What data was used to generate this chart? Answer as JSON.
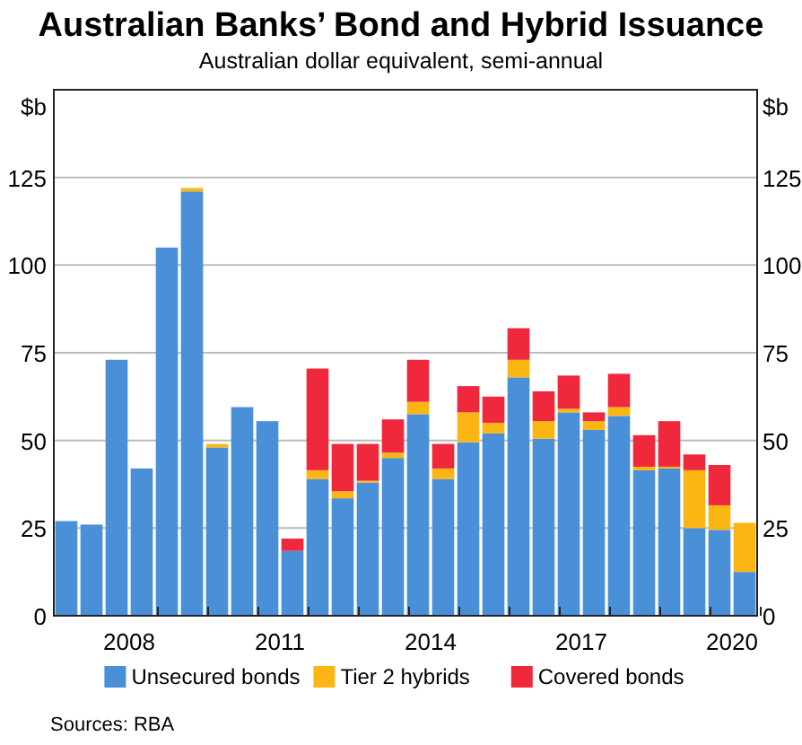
{
  "chart_data": {
    "type": "bar",
    "stacked": true,
    "title": "Australian Banks’ Bond and Hybrid Issuance",
    "subtitle": "Australian dollar equivalent, semi-annual",
    "ylabel": "$b",
    "y2label": "$b",
    "categories": [
      null,
      null,
      "2008",
      null,
      null,
      null,
      null,
      null,
      "2011",
      null,
      null,
      null,
      null,
      null,
      "2014",
      null,
      null,
      null,
      null,
      null,
      "2017",
      null,
      null,
      null,
      null,
      null,
      "2020",
      null
    ],
    "series": [
      {
        "name": "Unsecured bonds",
        "color": "#4a90d9",
        "values": [
          27,
          26,
          73,
          42,
          105,
          121,
          48,
          59.5,
          55.5,
          18.5,
          39,
          33.5,
          38,
          45,
          57.5,
          39,
          49.5,
          52,
          68,
          50.5,
          58,
          53,
          57,
          41.5,
          42,
          25,
          24.5,
          12.5
        ]
      },
      {
        "name": "Tier 2 hybrids",
        "color": "#fbb614",
        "values": [
          0,
          0,
          0,
          0,
          0,
          1,
          1,
          0,
          0,
          0,
          2.5,
          2,
          0.5,
          1.5,
          3.5,
          3,
          8.5,
          3,
          5,
          5,
          1,
          2.5,
          2.5,
          1,
          0.5,
          16.5,
          7,
          14
        ]
      },
      {
        "name": "Covered bonds",
        "color": "#f0283c",
        "values": [
          0,
          0,
          0,
          0,
          0,
          0,
          0,
          0,
          0,
          3.5,
          29,
          13.5,
          10.5,
          9.5,
          12,
          7,
          7.5,
          7.5,
          9,
          8.5,
          9.5,
          2.5,
          9.5,
          9,
          13,
          4.5,
          11.5,
          0
        ]
      }
    ],
    "ylim": [
      0,
      150
    ],
    "yticks": [
      0,
      25,
      50,
      75,
      100,
      125
    ],
    "y2lim": [
      0,
      150
    ],
    "y2ticks": [
      0,
      25,
      50,
      75,
      100,
      125
    ],
    "grid": "y",
    "legend": "bottom",
    "annotations": [
      "Sources: RBA"
    ]
  }
}
